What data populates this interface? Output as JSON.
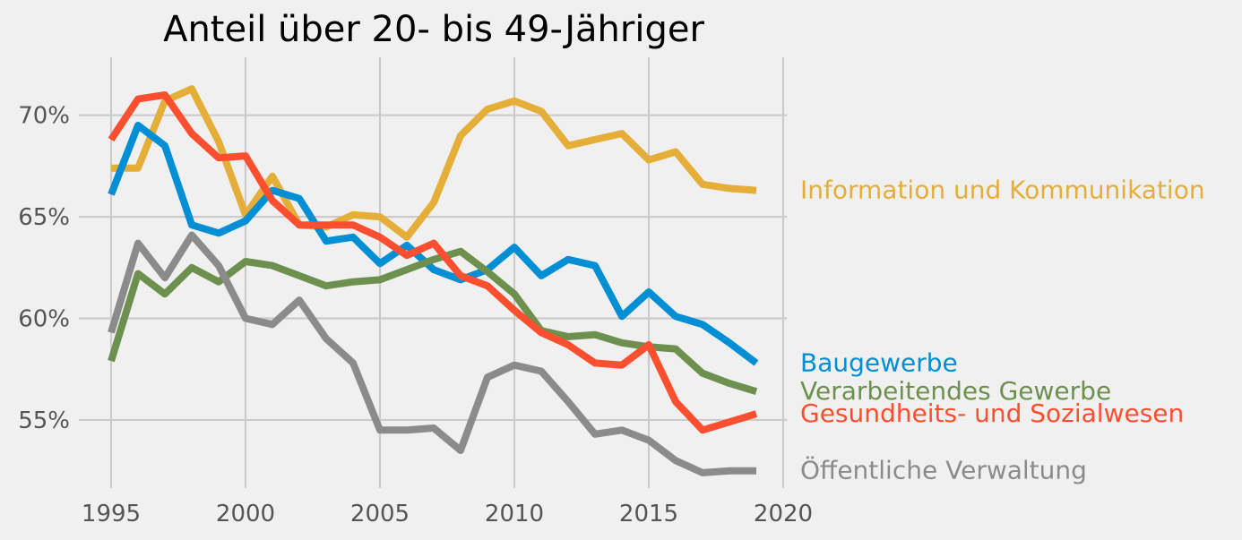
{
  "chart_data": {
    "type": "line",
    "title": "Anteil über 20- bis 49-Jähriger",
    "xlabel": "",
    "ylabel": "",
    "xlim": [
      1995,
      2020
    ],
    "ylim": [
      52,
      72.5
    ],
    "grid": true,
    "x_ticks": [
      1995,
      2000,
      2005,
      2010,
      2015,
      2020
    ],
    "x_tick_labels": [
      "1995",
      "2000",
      "2005",
      "2010",
      "2015",
      "2020"
    ],
    "y_ticks": [
      55,
      60,
      65,
      70
    ],
    "y_tick_labels": [
      "55%",
      "60%",
      "65%",
      "70%"
    ],
    "x": [
      1995,
      1996,
      1997,
      1998,
      1999,
      2000,
      2001,
      2002,
      2003,
      2004,
      2005,
      2006,
      2007,
      2008,
      2009,
      2010,
      2011,
      2012,
      2013,
      2014,
      2015,
      2016,
      2017,
      2018,
      2019
    ],
    "series": [
      {
        "name": "Information und Kommunikation",
        "color": "#e5ae38",
        "values": [
          67.4,
          67.4,
          70.7,
          71.3,
          68.7,
          65.1,
          67.0,
          64.6,
          64.5,
          65.1,
          65.0,
          64.0,
          65.7,
          69.0,
          70.3,
          70.7,
          70.2,
          68.5,
          68.8,
          69.1,
          67.8,
          68.2,
          66.6,
          66.4,
          66.3
        ]
      },
      {
        "name": "Baugewerbe",
        "color": "#008fd5",
        "values": [
          66.1,
          69.5,
          68.5,
          64.6,
          64.2,
          64.8,
          66.3,
          65.9,
          63.8,
          64.0,
          62.7,
          63.6,
          62.4,
          61.9,
          62.4,
          63.5,
          62.1,
          62.9,
          62.6,
          60.1,
          61.3,
          60.1,
          59.7,
          58.8,
          57.8
        ]
      },
      {
        "name": "Verarbeitendes Gewerbe",
        "color": "#6d904f",
        "values": [
          57.9,
          62.2,
          61.2,
          62.5,
          61.8,
          62.8,
          62.6,
          62.1,
          61.6,
          61.8,
          61.9,
          62.4,
          62.9,
          63.3,
          62.3,
          61.2,
          59.4,
          59.1,
          59.2,
          58.8,
          58.6,
          58.5,
          57.3,
          56.8,
          56.4
        ]
      },
      {
        "name": "Gesundheits- und Sozialwesen",
        "color": "#fc4f30",
        "values": [
          68.8,
          70.8,
          71.0,
          69.1,
          67.9,
          68.0,
          65.8,
          64.6,
          64.6,
          64.6,
          64.0,
          63.1,
          63.7,
          62.1,
          61.6,
          60.4,
          59.3,
          58.7,
          57.8,
          57.7,
          58.7,
          55.9,
          54.5,
          54.9,
          55.3
        ]
      },
      {
        "name": "Öffentliche Verwaltung",
        "color": "#8b8b8b",
        "values": [
          59.3,
          63.7,
          62.0,
          64.1,
          62.6,
          60.0,
          59.7,
          60.9,
          59.0,
          57.8,
          54.5,
          54.5,
          54.6,
          53.5,
          57.1,
          57.7,
          57.4,
          55.9,
          54.3,
          54.5,
          54.0,
          53.0,
          52.4,
          52.5,
          52.5
        ]
      }
    ]
  }
}
